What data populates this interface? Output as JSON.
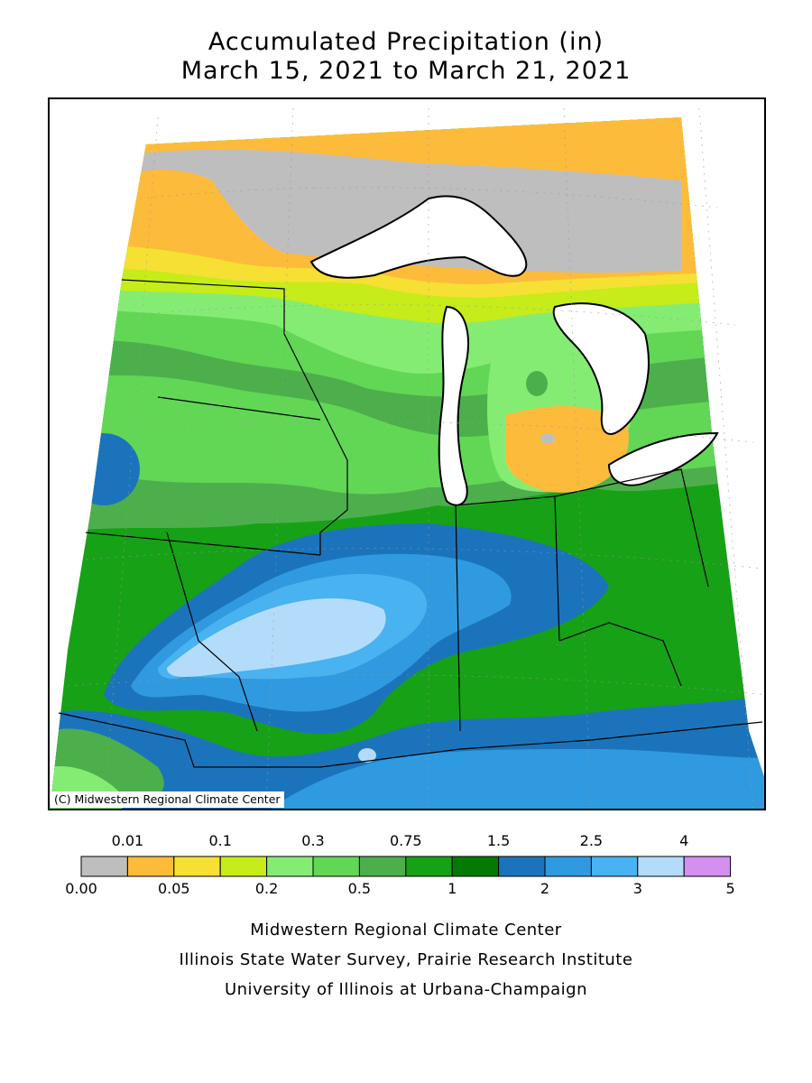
{
  "title_line1": "Accumulated Precipitation (in)",
  "title_line2": "March 15, 2021 to March 21, 2021",
  "copyright": "(C) Midwestern Regional Climate Center",
  "legend": {
    "bins": [
      {
        "color": "#bebebe"
      },
      {
        "color": "#fdbb3b"
      },
      {
        "color": "#f5e033"
      },
      {
        "color": "#c6ec19"
      },
      {
        "color": "#85ec73"
      },
      {
        "color": "#61d755"
      },
      {
        "color": "#4caf4c"
      },
      {
        "color": "#17a117"
      },
      {
        "color": "#047a04"
      },
      {
        "color": "#1b74bb"
      },
      {
        "color": "#2f9ae0"
      },
      {
        "color": "#49b2f0"
      },
      {
        "color": "#b3dcfa"
      },
      {
        "color": "#d48ff1"
      }
    ],
    "top_labels": [
      "0.01",
      "0.1",
      "0.3",
      "0.75",
      "1.5",
      "2.5",
      "4"
    ],
    "bottom_labels": [
      "0.00",
      "0.05",
      "0.2",
      "0.5",
      "1",
      "2",
      "3",
      "5"
    ]
  },
  "footer": {
    "line1": "Midwestern Regional Climate Center",
    "line2": "Illinois State Water Survey, Prairie Research Institute",
    "line3": "University of Illinois at Urbana-Champaign"
  }
}
